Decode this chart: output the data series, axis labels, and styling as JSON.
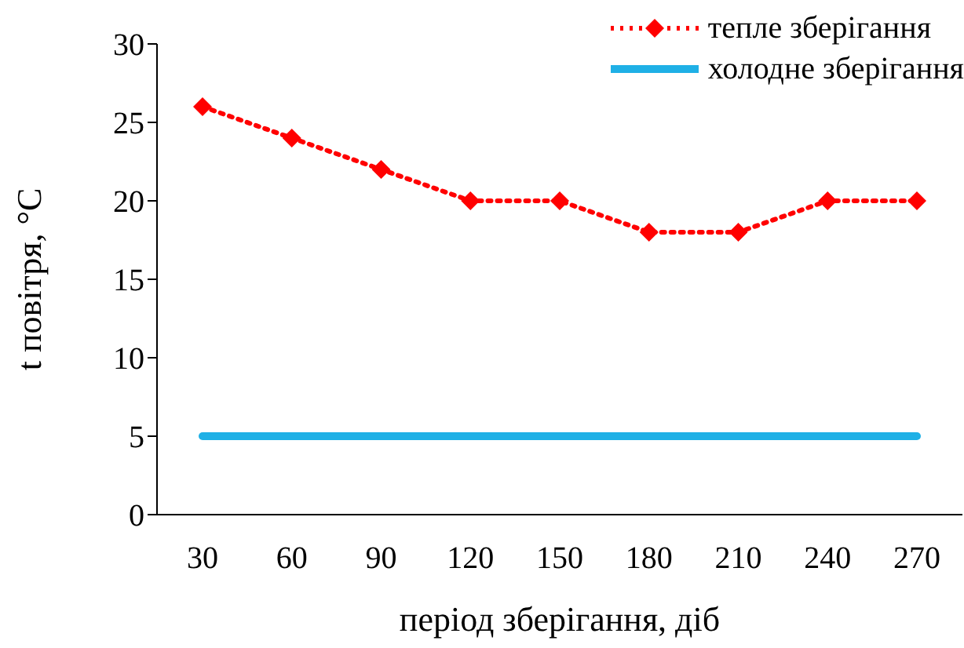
{
  "chart_data": {
    "type": "line",
    "xlabel": "період зберігання, діб",
    "ylabel": "t повітря, °C",
    "categories": [
      "30",
      "60",
      "90",
      "120",
      "150",
      "180",
      "210",
      "240",
      "270"
    ],
    "series": [
      {
        "name": "тепле зберігання",
        "color": "#ff0000",
        "marker": "diamond",
        "line_style": "dotted",
        "values": [
          26,
          24,
          22,
          20,
          20,
          18,
          18,
          20,
          20
        ]
      },
      {
        "name": "холодне зберігання",
        "color": "#1fb0e6",
        "marker": "none",
        "line_style": "solid",
        "values": [
          5,
          5,
          5,
          5,
          5,
          5,
          5,
          5,
          5
        ]
      }
    ],
    "ylim": [
      0,
      30
    ],
    "yticks": [
      0,
      5,
      10,
      15,
      20,
      25,
      30
    ],
    "grid": false,
    "legend": "top right"
  }
}
